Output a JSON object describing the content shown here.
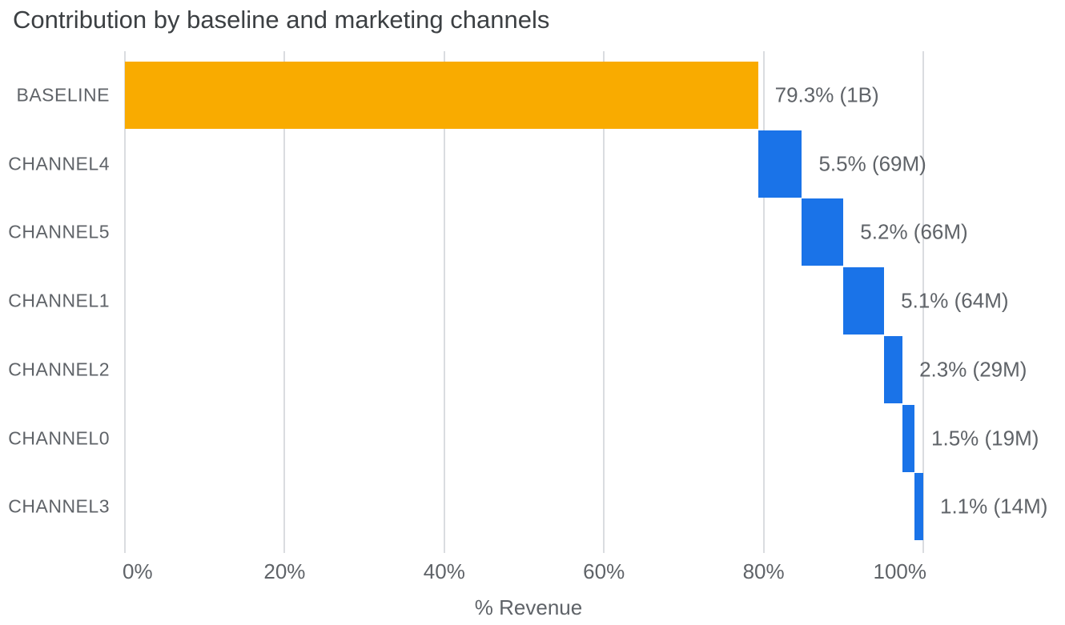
{
  "title": "Contribution by baseline and marketing channels",
  "chart_data": {
    "type": "bar",
    "subtype": "horizontal-waterfall",
    "title": "Contribution by baseline and marketing channels",
    "xlabel": "% Revenue",
    "ylabel": "",
    "xlim": [
      0,
      100
    ],
    "grid": true,
    "legend": "none",
    "categories": [
      "BASELINE",
      "CHANNEL4",
      "CHANNEL5",
      "CHANNEL1",
      "CHANNEL2",
      "CHANNEL0",
      "CHANNEL3"
    ],
    "x_ticks": [
      {
        "value": 0,
        "label": "0%"
      },
      {
        "value": 20,
        "label": "20%"
      },
      {
        "value": 40,
        "label": "40%"
      },
      {
        "value": 60,
        "label": "60%"
      },
      {
        "value": 80,
        "label": "80%"
      },
      {
        "value": 100,
        "label": "100%"
      }
    ],
    "bars": [
      {
        "category": "BASELINE",
        "start": 0,
        "end": 79.3,
        "value": 79.3,
        "label": "79.3% (1B)",
        "color": "#F9AB00"
      },
      {
        "category": "CHANNEL4",
        "start": 79.3,
        "end": 84.8,
        "value": 5.5,
        "label": "5.5% (69M)",
        "color": "#1A73E8"
      },
      {
        "category": "CHANNEL5",
        "start": 84.8,
        "end": 90.0,
        "value": 5.2,
        "label": "5.2% (66M)",
        "color": "#1A73E8"
      },
      {
        "category": "CHANNEL1",
        "start": 90.0,
        "end": 95.1,
        "value": 5.1,
        "label": "5.1% (64M)",
        "color": "#1A73E8"
      },
      {
        "category": "CHANNEL2",
        "start": 95.1,
        "end": 97.4,
        "value": 2.3,
        "label": "2.3% (29M)",
        "color": "#1A73E8"
      },
      {
        "category": "CHANNEL0",
        "start": 97.4,
        "end": 98.9,
        "value": 1.5,
        "label": "1.5% (19M)",
        "color": "#1A73E8"
      },
      {
        "category": "CHANNEL3",
        "start": 98.9,
        "end": 100.0,
        "value": 1.1,
        "label": "1.1% (14M)",
        "color": "#1A73E8"
      }
    ],
    "colors": {
      "baseline_bar": "#F9AB00",
      "channel_bar": "#1A73E8",
      "gridline": "#DADCE0",
      "title_text": "#3C4043",
      "label_text": "#5F6368"
    }
  }
}
